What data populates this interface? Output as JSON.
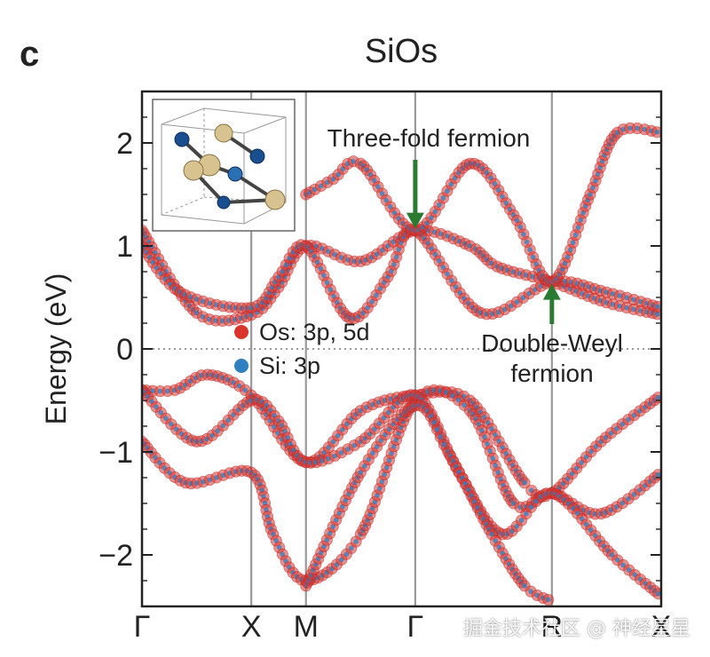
{
  "panel_label": "c",
  "chart_data": {
    "type": "line",
    "title": "SiOs",
    "ylabel": "Energy (eV)",
    "xlabel": "",
    "ylim": [
      -2.5,
      2.5
    ],
    "yticks": [
      -2,
      -1,
      0,
      1,
      2
    ],
    "ytick_labels": [
      "−2",
      "−1",
      "0",
      "1",
      "2"
    ],
    "kpoints": [
      {
        "label": "Γ",
        "x": 0
      },
      {
        "label": "X",
        "x": 1
      },
      {
        "label": "M",
        "x": 1.5
      },
      {
        "label": "Γ",
        "x": 2.5
      },
      {
        "label": "R",
        "x": 3.75
      },
      {
        "label": "X",
        "x": 4.75
      }
    ],
    "fermi_level": 0,
    "grid": false,
    "legend_position": "center-left",
    "legend": [
      {
        "label": "Os: 3p, 5d",
        "color": "#d9342b"
      },
      {
        "label": "Si: 3p",
        "color": "#2f7fc1"
      }
    ],
    "annotations": [
      {
        "text": "Three-fold fermion",
        "x": 2.5,
        "y": 1.15,
        "arrow_color": "#2a7a32"
      },
      {
        "text_lines": [
          "Double-Weyl",
          "fermion"
        ],
        "x": 3.75,
        "y": 0.65,
        "arrow_color": "#2a7a32"
      }
    ],
    "series": [
      {
        "x": [
          0,
          0.5,
          1,
          1.25,
          1.5,
          2,
          2.5,
          3,
          3.25,
          3.75,
          4.25,
          4.75
        ],
        "y": [
          1.15,
          0.35,
          0.33,
          0.6,
          1.0,
          0.85,
          1.15,
          1.0,
          0.8,
          0.65,
          0.45,
          0.33
        ]
      },
      {
        "x": [
          0,
          0.35,
          1,
          1.25,
          1.5,
          1.9,
          2.25,
          2.5,
          3.1,
          3.75,
          4.25,
          4.75
        ],
        "y": [
          1.0,
          0.55,
          0.4,
          0.7,
          1.0,
          0.3,
          0.7,
          1.15,
          0.35,
          0.65,
          0.55,
          0.4
        ]
      },
      {
        "x": [
          1.5,
          1.75,
          2.0,
          2.5,
          3.0,
          3.4,
          3.75,
          4.1,
          4.35,
          4.75
        ],
        "y": [
          1.5,
          1.65,
          1.8,
          1.15,
          1.8,
          1.3,
          0.65,
          1.5,
          2.1,
          2.1
        ]
      },
      {
        "x": [
          0,
          0.3,
          0.6,
          1,
          1.5,
          2.0,
          2.5,
          3.0,
          3.5,
          3.75,
          4.2,
          4.75
        ],
        "y": [
          -0.4,
          -0.4,
          -0.25,
          -0.45,
          -1.1,
          -0.6,
          -0.45,
          -0.5,
          -1.3,
          -1.4,
          -0.9,
          -0.45
        ]
      },
      {
        "x": [
          0,
          0.4,
          1,
          1.2,
          1.5,
          2.0,
          2.5,
          3.0,
          3.4,
          3.75,
          4.2,
          4.75
        ],
        "y": [
          -0.9,
          -1.3,
          -1.2,
          -1.8,
          -2.25,
          -1.8,
          -0.5,
          -0.6,
          -1.5,
          -1.4,
          -1.6,
          -1.2
        ]
      },
      {
        "x": [
          0,
          0.5,
          1,
          1.25,
          1.5,
          2.0,
          2.5,
          2.9,
          3.3,
          3.75,
          4.3,
          4.75
        ],
        "y": [
          -0.4,
          -0.9,
          -0.5,
          -0.7,
          -1.1,
          -0.9,
          -0.45,
          -1.2,
          -1.8,
          -1.4,
          -2.0,
          -2.4
        ]
      },
      {
        "x": [
          1.5,
          2.0,
          2.5,
          2.8,
          3.2,
          3.5,
          3.75
        ],
        "y": [
          -2.3,
          -1.2,
          -0.55,
          -1.0,
          -1.8,
          -2.3,
          -2.45
        ]
      }
    ]
  }
}
